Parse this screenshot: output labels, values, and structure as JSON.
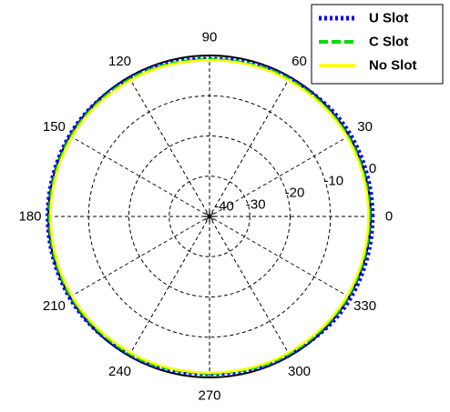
{
  "chart_data": {
    "type": "line",
    "subtype": "polar",
    "title": "",
    "angle_unit": "degrees",
    "angle_ticks": [
      0,
      30,
      60,
      90,
      120,
      150,
      180,
      210,
      240,
      270,
      300,
      330
    ],
    "angle_tick_labels": [
      "0",
      "30",
      "60",
      "90",
      "120",
      "150",
      "180",
      "210",
      "240",
      "270",
      "300",
      "330"
    ],
    "radial_ticks": [
      0,
      -10,
      -20,
      -30,
      -40
    ],
    "radial_tick_labels": [
      "0",
      "-10",
      "-20",
      "-30",
      "-40"
    ],
    "rlim": [
      -40,
      0
    ],
    "grid": true,
    "legend_position": "top-right",
    "series": [
      {
        "name": "U Slot",
        "color": "#0000ff",
        "style": "dotted",
        "theta": [
          0,
          30,
          60,
          90,
          120,
          150,
          180,
          210,
          240,
          270,
          300,
          330,
          360
        ],
        "r": [
          0.5,
          0.5,
          -0.3,
          -0.8,
          -0.3,
          0.2,
          0.2,
          0.2,
          -0.3,
          -0.8,
          -0.3,
          0.5,
          0.5
        ]
      },
      {
        "name": "C Slot",
        "color": "#00dd00",
        "style": "dashed",
        "theta": [
          0,
          30,
          60,
          90,
          120,
          150,
          180,
          210,
          240,
          270,
          300,
          330,
          360
        ],
        "r": [
          -0.3,
          -0.3,
          -0.6,
          -1.0,
          -0.6,
          -0.3,
          -0.3,
          -0.3,
          -0.6,
          -1.0,
          -0.6,
          -0.3,
          -0.3
        ]
      },
      {
        "name": "No Slot",
        "color": "#ffff00",
        "style": "solid",
        "theta": [
          0,
          30,
          60,
          90,
          120,
          150,
          180,
          210,
          240,
          270,
          300,
          330,
          360
        ],
        "r": [
          -0.6,
          -0.6,
          -0.9,
          -1.2,
          -0.9,
          -0.6,
          -0.6,
          -0.6,
          -0.9,
          -1.2,
          -0.9,
          -0.6,
          -0.6
        ]
      }
    ]
  }
}
